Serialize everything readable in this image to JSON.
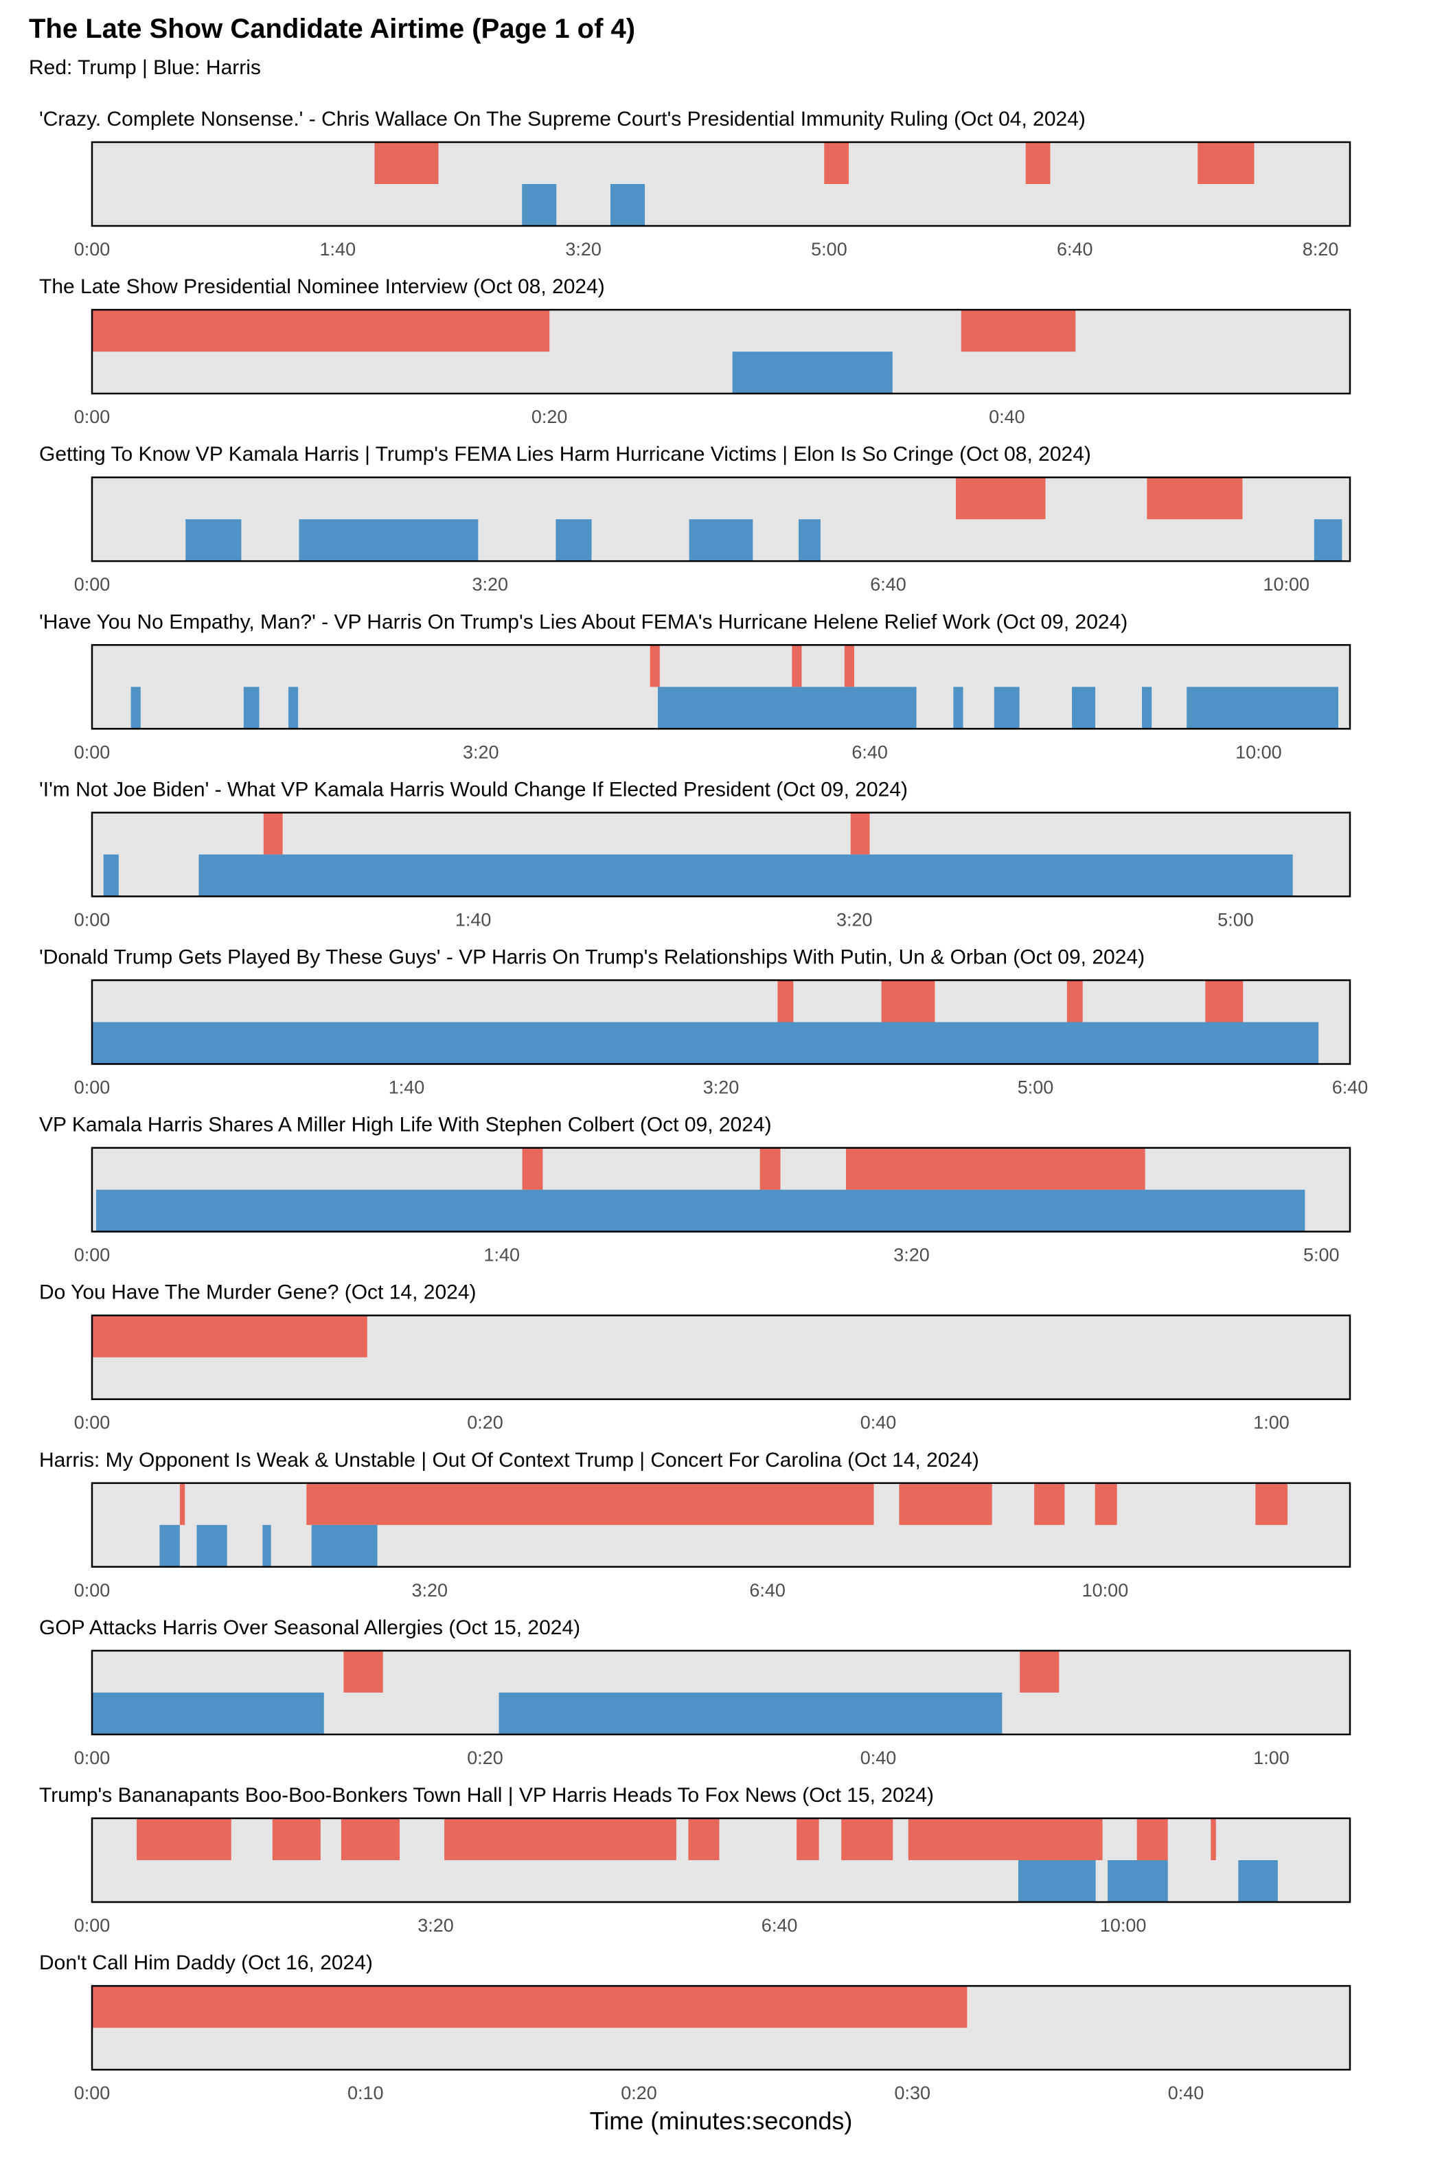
{
  "page": {
    "title": "The Late Show Candidate Airtime (Page 1 of 4)",
    "subtitle": "Red: Trump | Blue: Harris",
    "xlabel": "Time (minutes:seconds)"
  },
  "colors": {
    "trump": "#E8695C",
    "harris": "#4F93C6",
    "panel_bg": "#E5E5E5",
    "border": "#000000",
    "tick_text": "#4D4D4D"
  },
  "chart_data": [
    {
      "type": "timeline",
      "title": "'Crazy. Complete Nonsense.' - Chris Wallace On The Supreme Court's Presidential Immunity Ruling (Oct 04, 2024)",
      "xlim": [
        0,
        512
      ],
      "ticks": [
        0,
        100,
        200,
        300,
        400,
        500
      ],
      "tick_labels": [
        "0:00",
        "1:40",
        "3:20",
        "5:00",
        "6:40",
        "8:20"
      ],
      "series": [
        {
          "name": "Trump",
          "segments": [
            [
              115,
              141
            ],
            [
              298,
              308
            ],
            [
              380,
              390
            ],
            [
              450,
              473
            ]
          ]
        },
        {
          "name": "Harris",
          "segments": [
            [
              175,
              189
            ],
            [
              211,
              225
            ]
          ]
        }
      ]
    },
    {
      "type": "timeline",
      "title": "The Late Show Presidential Nominee Interview (Oct 08, 2024)",
      "xlim": [
        0,
        55
      ],
      "ticks": [
        0,
        20,
        40
      ],
      "tick_labels": [
        "0:00",
        "0:20",
        "0:40"
      ],
      "series": [
        {
          "name": "Trump",
          "segments": [
            [
              0,
              20
            ],
            [
              38,
              43
            ]
          ]
        },
        {
          "name": "Harris",
          "segments": [
            [
              28,
              35
            ]
          ]
        }
      ]
    },
    {
      "type": "timeline",
      "title": "Getting To Know VP Kamala Harris | Trump's FEMA Lies Harm Hurricane Victims | Elon Is So Cringe (Oct 08, 2024)",
      "xlim": [
        0,
        632
      ],
      "ticks": [
        0,
        200,
        400,
        600
      ],
      "tick_labels": [
        "0:00",
        "3:20",
        "6:40",
        "10:00"
      ],
      "series": [
        {
          "name": "Trump",
          "segments": [
            [
              434,
              479
            ],
            [
              530,
              578
            ]
          ]
        },
        {
          "name": "Harris",
          "segments": [
            [
              47,
              75
            ],
            [
              104,
              194
            ],
            [
              233,
              251
            ],
            [
              300,
              332
            ],
            [
              355,
              366
            ],
            [
              614,
              628
            ]
          ]
        }
      ]
    },
    {
      "type": "timeline",
      "title": "'Have You No Empathy, Man?' - VP Harris On Trump's Lies About FEMA's Hurricane Helene Relief Work (Oct 09, 2024)",
      "xlim": [
        0,
        647
      ],
      "ticks": [
        0,
        200,
        400,
        600
      ],
      "tick_labels": [
        "0:00",
        "3:20",
        "6:40",
        "10:00"
      ],
      "series": [
        {
          "name": "Trump",
          "segments": [
            [
              287,
              292
            ],
            [
              360,
              365
            ],
            [
              387,
              392
            ]
          ]
        },
        {
          "name": "Harris",
          "segments": [
            [
              20,
              25
            ],
            [
              78,
              86
            ],
            [
              101,
              106
            ],
            [
              291,
              424
            ],
            [
              443,
              448
            ],
            [
              464,
              477
            ],
            [
              504,
              516
            ],
            [
              540,
              545
            ],
            [
              563,
              641
            ]
          ]
        }
      ]
    },
    {
      "type": "timeline",
      "title": "'I'm Not Joe Biden' - What VP Kamala Harris Would Change If Elected President (Oct 09, 2024)",
      "xlim": [
        0,
        330
      ],
      "ticks": [
        0,
        100,
        200,
        300
      ],
      "tick_labels": [
        "0:00",
        "1:40",
        "3:20",
        "5:00"
      ],
      "series": [
        {
          "name": "Trump",
          "segments": [
            [
              45,
              50
            ],
            [
              199,
              204
            ]
          ]
        },
        {
          "name": "Harris",
          "segments": [
            [
              3,
              7
            ],
            [
              28,
              315
            ]
          ]
        }
      ]
    },
    {
      "type": "timeline",
      "title": "'Donald Trump Gets Played By These Guys' - VP Harris On Trump's Relationships With Putin, Un & Orban (Oct 09, 2024)",
      "xlim": [
        0,
        400
      ],
      "ticks": [
        0,
        100,
        200,
        300,
        400
      ],
      "tick_labels": [
        "0:00",
        "1:40",
        "3:20",
        "5:00",
        "6:40"
      ],
      "series": [
        {
          "name": "Trump",
          "segments": [
            [
              218,
              223
            ],
            [
              251,
              268
            ],
            [
              310,
              315
            ],
            [
              354,
              366
            ]
          ]
        },
        {
          "name": "Harris",
          "segments": [
            [
              0,
              390
            ]
          ]
        }
      ]
    },
    {
      "type": "timeline",
      "title": "VP Kamala Harris Shares A Miller High Life With Stephen Colbert (Oct 09, 2024)",
      "xlim": [
        0,
        307
      ],
      "ticks": [
        0,
        100,
        200,
        300
      ],
      "tick_labels": [
        "0:00",
        "1:40",
        "3:20",
        "5:00"
      ],
      "series": [
        {
          "name": "Trump",
          "segments": [
            [
              105,
              110
            ],
            [
              163,
              168
            ],
            [
              184,
              257
            ]
          ]
        },
        {
          "name": "Harris",
          "segments": [
            [
              1,
              296
            ]
          ]
        }
      ]
    },
    {
      "type": "timeline",
      "title": "Do You Have The Murder Gene? (Oct 14, 2024)",
      "xlim": [
        0,
        64
      ],
      "ticks": [
        0,
        20,
        40,
        60
      ],
      "tick_labels": [
        "0:00",
        "0:20",
        "0:40",
        "1:00"
      ],
      "series": [
        {
          "name": "Trump",
          "segments": [
            [
              0,
              14
            ]
          ]
        },
        {
          "name": "Harris",
          "segments": []
        }
      ]
    },
    {
      "type": "timeline",
      "title": "Harris: My Opponent Is Weak & Unstable | Out Of Context Trump | Concert For Carolina (Oct 14, 2024)",
      "xlim": [
        0,
        745
      ],
      "ticks": [
        0,
        200,
        400,
        600
      ],
      "tick_labels": [
        "0:00",
        "3:20",
        "6:40",
        "10:00"
      ],
      "series": [
        {
          "name": "Trump",
          "segments": [
            [
              52,
              55
            ],
            [
              127,
              463
            ],
            [
              478,
              533
            ],
            [
              558,
              576
            ],
            [
              594,
              607
            ],
            [
              689,
              708
            ]
          ]
        },
        {
          "name": "Harris",
          "segments": [
            [
              40,
              52
            ],
            [
              62,
              80
            ],
            [
              101,
              106
            ],
            [
              130,
              169
            ]
          ]
        }
      ]
    },
    {
      "type": "timeline",
      "title": "GOP Attacks Harris Over Seasonal Allergies (Oct 15, 2024)",
      "xlim": [
        0,
        64
      ],
      "ticks": [
        0,
        20,
        40,
        60
      ],
      "tick_labels": [
        "0:00",
        "0:20",
        "0:40",
        "1:00"
      ],
      "series": [
        {
          "name": "Trump",
          "segments": [
            [
              12.8,
              14.8
            ],
            [
              47.2,
              49.2
            ]
          ]
        },
        {
          "name": "Harris",
          "segments": [
            [
              0,
              11.8
            ],
            [
              20.7,
              46.3
            ]
          ]
        }
      ]
    },
    {
      "type": "timeline",
      "title": "Trump's Bananapants Boo-Boo-Bonkers Town Hall | VP Harris Heads To Fox News (Oct 15, 2024)",
      "xlim": [
        0,
        732
      ],
      "ticks": [
        0,
        200,
        400,
        600
      ],
      "tick_labels": [
        "0:00",
        "3:20",
        "6:40",
        "10:00"
      ],
      "series": [
        {
          "name": "Trump",
          "segments": [
            [
              26,
              81
            ],
            [
              105,
              133
            ],
            [
              145,
              179
            ],
            [
              205,
              340
            ],
            [
              347,
              365
            ],
            [
              410,
              423
            ],
            [
              436,
              466
            ],
            [
              475,
              588
            ],
            [
              608,
              626
            ],
            [
              651,
              654
            ]
          ]
        },
        {
          "name": "Harris",
          "segments": [
            [
              539,
              584
            ],
            [
              591,
              626
            ],
            [
              667,
              690
            ]
          ]
        }
      ]
    },
    {
      "type": "timeline",
      "title": "Don't Call Him Daddy (Oct 16, 2024)",
      "xlim": [
        0,
        46
      ],
      "ticks": [
        0,
        10,
        20,
        30,
        40
      ],
      "tick_labels": [
        "0:00",
        "0:10",
        "0:20",
        "0:30",
        "0:40"
      ],
      "series": [
        {
          "name": "Trump",
          "segments": [
            [
              0,
              32
            ]
          ]
        },
        {
          "name": "Harris",
          "segments": []
        }
      ]
    }
  ]
}
